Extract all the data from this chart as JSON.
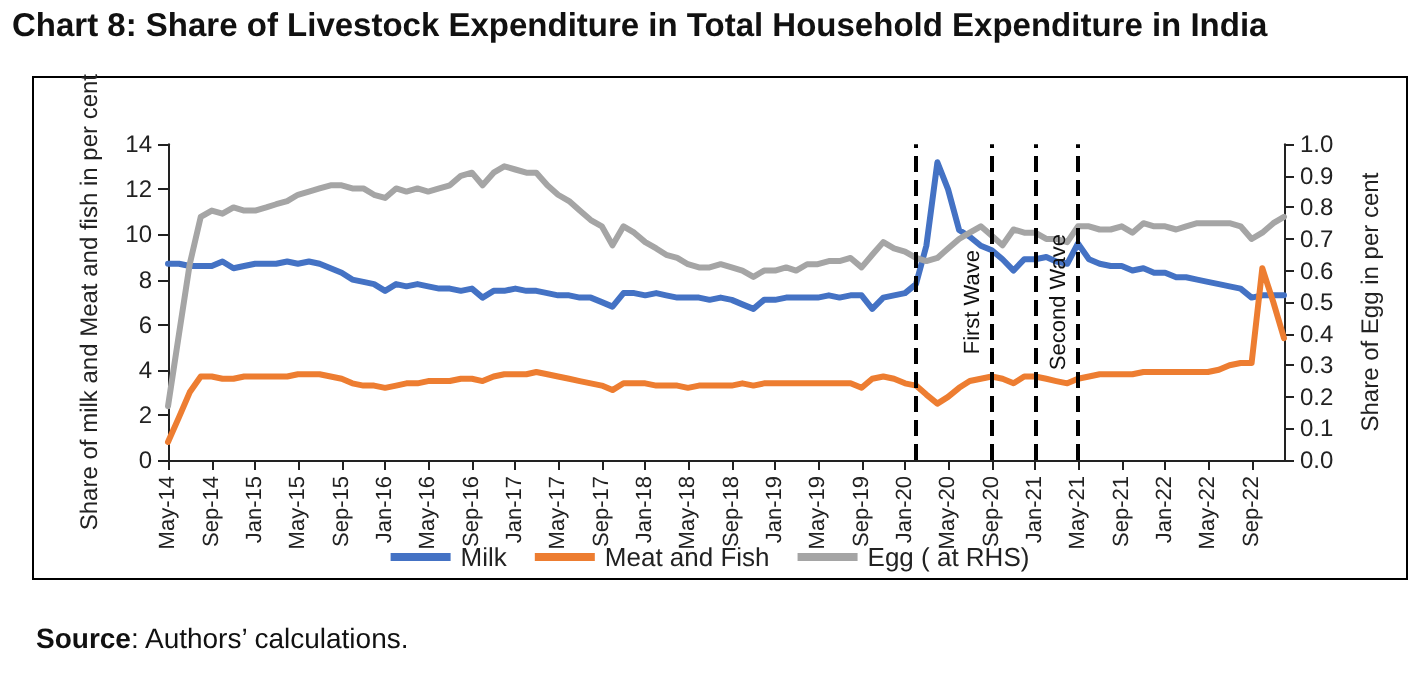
{
  "chart_data": {
    "type": "line",
    "title": "Chart 8: Share of Livestock Expenditure in Total Household Expenditure in India",
    "ylabel": "Share of milk and Meat and fish in per cent",
    "y2label": "Share of Egg in per cent",
    "annotations": [
      "Source: Authors’ calculations."
    ],
    "x": [
      "2014-05",
      "2014-06",
      "2014-07",
      "2014-08",
      "2014-09",
      "2014-10",
      "2014-11",
      "2014-12",
      "2015-01",
      "2015-02",
      "2015-03",
      "2015-04",
      "2015-05",
      "2015-06",
      "2015-07",
      "2015-08",
      "2015-09",
      "2015-10",
      "2015-11",
      "2015-12",
      "2016-01",
      "2016-02",
      "2016-03",
      "2016-04",
      "2016-05",
      "2016-06",
      "2016-07",
      "2016-08",
      "2016-09",
      "2016-10",
      "2016-11",
      "2016-12",
      "2017-01",
      "2017-02",
      "2017-03",
      "2017-04",
      "2017-05",
      "2017-06",
      "2017-07",
      "2017-08",
      "2017-09",
      "2017-10",
      "2017-11",
      "2017-12",
      "2018-01",
      "2018-02",
      "2018-03",
      "2018-04",
      "2018-05",
      "2018-06",
      "2018-07",
      "2018-08",
      "2018-09",
      "2018-10",
      "2018-11",
      "2018-12",
      "2019-01",
      "2019-02",
      "2019-03",
      "2019-04",
      "2019-05",
      "2019-06",
      "2019-07",
      "2019-08",
      "2019-09",
      "2019-10",
      "2019-11",
      "2019-12",
      "2020-01",
      "2020-02",
      "2020-03",
      "2020-04",
      "2020-05",
      "2020-06",
      "2020-07",
      "2020-08",
      "2020-09",
      "2020-10",
      "2020-11",
      "2020-12",
      "2021-01",
      "2021-02",
      "2021-03",
      "2021-04",
      "2021-05",
      "2021-06",
      "2021-07",
      "2021-08",
      "2021-09",
      "2021-10",
      "2021-11",
      "2021-12",
      "2022-01",
      "2022-02",
      "2022-03",
      "2022-04",
      "2022-05",
      "2022-06",
      "2022-07",
      "2022-08",
      "2022-09",
      "2022-10",
      "2022-11",
      "2022-12"
    ],
    "series": [
      {
        "name": "Milk",
        "color": "#4472c4",
        "values": [
          8.7,
          8.7,
          8.6,
          8.6,
          8.6,
          8.8,
          8.5,
          8.6,
          8.7,
          8.7,
          8.7,
          8.8,
          8.7,
          8.8,
          8.7,
          8.5,
          8.3,
          8.0,
          7.9,
          7.8,
          7.5,
          7.8,
          7.7,
          7.8,
          7.7,
          7.6,
          7.6,
          7.5,
          7.6,
          7.2,
          7.5,
          7.5,
          7.6,
          7.5,
          7.5,
          7.4,
          7.3,
          7.3,
          7.2,
          7.2,
          7.0,
          6.8,
          7.4,
          7.4,
          7.3,
          7.4,
          7.3,
          7.2,
          7.2,
          7.2,
          7.1,
          7.2,
          7.1,
          6.9,
          6.7,
          7.1,
          7.1,
          7.2,
          7.2,
          7.2,
          7.2,
          7.3,
          7.2,
          7.3,
          7.3,
          6.7,
          7.2,
          7.3,
          7.4,
          7.8,
          9.5,
          13.2,
          12.0,
          10.2,
          9.9,
          9.5,
          9.3,
          8.9,
          8.4,
          8.9,
          8.9,
          9.0,
          8.8,
          8.7,
          9.6,
          8.9,
          8.7,
          8.6,
          8.6,
          8.4,
          8.5,
          8.3,
          8.3,
          8.1,
          8.1,
          8.0,
          7.9,
          7.8,
          7.7,
          7.6,
          7.2,
          7.3,
          7.3,
          7.3
        ]
      },
      {
        "name": "Meat and Fish",
        "color": "#ed7d31",
        "values": [
          0.8,
          1.9,
          3.0,
          3.7,
          3.7,
          3.6,
          3.6,
          3.7,
          3.7,
          3.7,
          3.7,
          3.7,
          3.8,
          3.8,
          3.8,
          3.7,
          3.6,
          3.4,
          3.3,
          3.3,
          3.2,
          3.3,
          3.4,
          3.4,
          3.5,
          3.5,
          3.5,
          3.6,
          3.6,
          3.5,
          3.7,
          3.8,
          3.8,
          3.8,
          3.9,
          3.8,
          3.7,
          3.6,
          3.5,
          3.4,
          3.3,
          3.1,
          3.4,
          3.4,
          3.4,
          3.3,
          3.3,
          3.3,
          3.2,
          3.3,
          3.3,
          3.3,
          3.3,
          3.4,
          3.3,
          3.4,
          3.4,
          3.4,
          3.4,
          3.4,
          3.4,
          3.4,
          3.4,
          3.4,
          3.2,
          3.6,
          3.7,
          3.6,
          3.4,
          3.3,
          2.9,
          2.5,
          2.8,
          3.2,
          3.5,
          3.6,
          3.7,
          3.6,
          3.4,
          3.7,
          3.7,
          3.6,
          3.5,
          3.4,
          3.6,
          3.7,
          3.8,
          3.8,
          3.8,
          3.8,
          3.9,
          3.9,
          3.9,
          3.9,
          3.9,
          3.9,
          3.9,
          4.0,
          4.2,
          4.3,
          4.3,
          8.5,
          7.0,
          5.4
        ]
      },
      {
        "name": "Egg ( at RHS)",
        "color": "#a5a5a5",
        "axis": "y2",
        "values": [
          0.17,
          0.4,
          0.62,
          0.77,
          0.79,
          0.78,
          0.8,
          0.79,
          0.79,
          0.8,
          0.81,
          0.82,
          0.84,
          0.85,
          0.86,
          0.87,
          0.87,
          0.86,
          0.86,
          0.84,
          0.83,
          0.86,
          0.85,
          0.86,
          0.85,
          0.86,
          0.87,
          0.9,
          0.91,
          0.87,
          0.91,
          0.93,
          0.92,
          0.91,
          0.91,
          0.87,
          0.84,
          0.82,
          0.79,
          0.76,
          0.74,
          0.68,
          0.74,
          0.72,
          0.69,
          0.67,
          0.65,
          0.64,
          0.62,
          0.61,
          0.61,
          0.62,
          0.61,
          0.6,
          0.58,
          0.6,
          0.6,
          0.61,
          0.6,
          0.62,
          0.62,
          0.63,
          0.63,
          0.64,
          0.61,
          0.65,
          0.69,
          0.67,
          0.66,
          0.64,
          0.63,
          0.64,
          0.67,
          0.7,
          0.72,
          0.74,
          0.71,
          0.68,
          0.73,
          0.72,
          0.72,
          0.7,
          0.7,
          0.69,
          0.74,
          0.74,
          0.73,
          0.73,
          0.74,
          0.72,
          0.75,
          0.74,
          0.74,
          0.73,
          0.74,
          0.75,
          0.75,
          0.75,
          0.75,
          0.74,
          0.7,
          0.72,
          0.75,
          0.77
        ]
      }
    ],
    "xlim": [
      "2014-05",
      "2022-12"
    ],
    "xticks": [
      {
        "value": "2014-05",
        "label": "May-14"
      },
      {
        "value": "2014-09",
        "label": "Sep-14"
      },
      {
        "value": "2015-01",
        "label": "Jan-15"
      },
      {
        "value": "2015-05",
        "label": "May-15"
      },
      {
        "value": "2015-09",
        "label": "Sep-15"
      },
      {
        "value": "2016-01",
        "label": "Jan-16"
      },
      {
        "value": "2016-05",
        "label": "May-16"
      },
      {
        "value": "2016-09",
        "label": "Sep-16"
      },
      {
        "value": "2017-01",
        "label": "Jan-17"
      },
      {
        "value": "2017-05",
        "label": "May-17"
      },
      {
        "value": "2017-09",
        "label": "Sep-17"
      },
      {
        "value": "2018-01",
        "label": "Jan-18"
      },
      {
        "value": "2018-05",
        "label": "May-18"
      },
      {
        "value": "2018-09",
        "label": "Sep-18"
      },
      {
        "value": "2019-01",
        "label": "Jan-19"
      },
      {
        "value": "2019-05",
        "label": "May-19"
      },
      {
        "value": "2019-09",
        "label": "Sep-19"
      },
      {
        "value": "2020-01",
        "label": "Jan-20"
      },
      {
        "value": "2020-05",
        "label": "May-20"
      },
      {
        "value": "2020-09",
        "label": "Sep-20"
      },
      {
        "value": "2021-01",
        "label": "Jan-21"
      },
      {
        "value": "2021-05",
        "label": "May-21"
      },
      {
        "value": "2021-09",
        "label": "Sep-21"
      },
      {
        "value": "2022-01",
        "label": "Jan-22"
      },
      {
        "value": "2022-05",
        "label": "May-22"
      },
      {
        "value": "2022-09",
        "label": "Sep-22"
      }
    ],
    "ylim": [
      0,
      14
    ],
    "yticks": [
      0,
      2,
      4,
      6,
      8,
      10,
      12,
      14
    ],
    "y2lim": [
      0,
      1
    ],
    "y2ticks": [
      {
        "value": 0,
        "label": "0.0"
      },
      {
        "value": 0.1,
        "label": "0.1"
      },
      {
        "value": 0.2,
        "label": "0.2"
      },
      {
        "value": 0.3,
        "label": "0.3"
      },
      {
        "value": 0.4,
        "label": "0.4"
      },
      {
        "value": 0.5,
        "label": "0.5"
      },
      {
        "value": 0.6,
        "label": "0.6"
      },
      {
        "value": 0.7,
        "label": "0.7"
      },
      {
        "value": 0.8,
        "label": "0.8"
      },
      {
        "value": 0.9,
        "label": "0.9"
      },
      {
        "value": 1,
        "label": "1.0"
      }
    ],
    "ref_lines": [
      {
        "axis": "x",
        "value": "2020-02",
        "color": "#000000",
        "line_style": "dashed"
      },
      {
        "axis": "x",
        "value": "2020-09",
        "label": "First Wave",
        "color": "#000000",
        "line_style": "dashed"
      },
      {
        "axis": "x",
        "value": "2021-01",
        "color": "#000000",
        "line_style": "dashed"
      },
      {
        "axis": "x",
        "value": "2021-05",
        "label": "Second Wave",
        "color": "#000000",
        "line_style": "dashed"
      }
    ],
    "grid": false,
    "legend": "bottom",
    "marker": "none",
    "line_style": "solid"
  }
}
